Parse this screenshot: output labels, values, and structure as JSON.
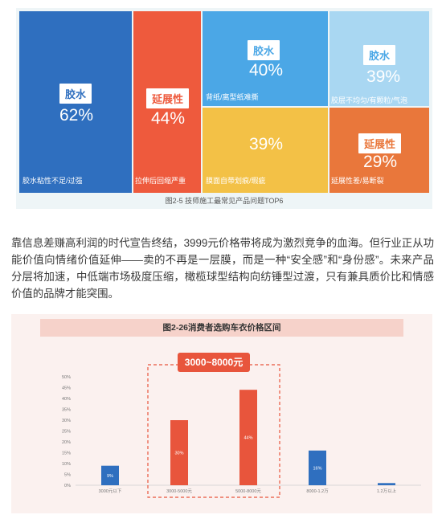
{
  "figure1": {
    "tiles": [
      {
        "tag": "胶水",
        "percent": "62%",
        "desc": "胶水粘性不足/过强",
        "color": "#2f6fbf"
      },
      {
        "tag": "延展性",
        "percent": "44%",
        "desc": "拉伸后回缩严重",
        "color": "#ee5a3d"
      },
      {
        "tag": "胶水",
        "percent": "40%",
        "desc": "背纸/离型纸难撕",
        "color": "#4ba7e6"
      },
      {
        "tag": "胶水",
        "percent": "39%",
        "desc": "胶层不均匀/有颗粒/气泡",
        "color": "#a9d7f2"
      },
      {
        "tag": "",
        "percent": "39%",
        "desc": "膜面自带划痕/瑕疵",
        "color": "#f3c146"
      },
      {
        "tag": "延展性",
        "percent": "29%",
        "desc": "延展性差/易断裂",
        "color": "#e9773b"
      }
    ],
    "caption": "图2-5  技师施工最常见产品问题TOP6"
  },
  "paragraph": "靠信息差赚高利润的时代宣告终结，3999元价格带将成为激烈竞争的血海。但行业正从功能价值向情绪价值延伸——卖的不再是一层膜，而是一种“安全感”和“身份感”。未来产品分层将加速，中低端市场极度压缩，橄榄球型结构向纺锤型过渡，只有兼具质价比和情感价值的品牌才能突围。",
  "figure2": {
    "title": "图2-26消费者选购车衣价格区间",
    "highlight_label": "3000~8000元",
    "highlight_color": "#e8553c",
    "bar_colors": {
      "highlight": "#e8553c",
      "normal": "#2f6fbf"
    }
  },
  "chart_data": {
    "type": "bar",
    "title": "图2-26消费者选购车衣价格区间",
    "categories": [
      "3000元以下",
      "3000-5000元",
      "5000-8000元",
      "8000-1.2万",
      "1.2万以上"
    ],
    "values": [
      9,
      30,
      44,
      16,
      1
    ],
    "data_labels": [
      "9%",
      "30%",
      "44%",
      "16%",
      ""
    ],
    "highlighted": [
      false,
      true,
      true,
      false,
      false
    ],
    "ylim": [
      0,
      50
    ],
    "yticks": [
      "0%",
      "5%",
      "10%",
      "15%",
      "20%",
      "25%",
      "30%",
      "35%",
      "40%",
      "45%",
      "50%"
    ],
    "xlabel": "",
    "ylabel": "",
    "grid": false
  }
}
